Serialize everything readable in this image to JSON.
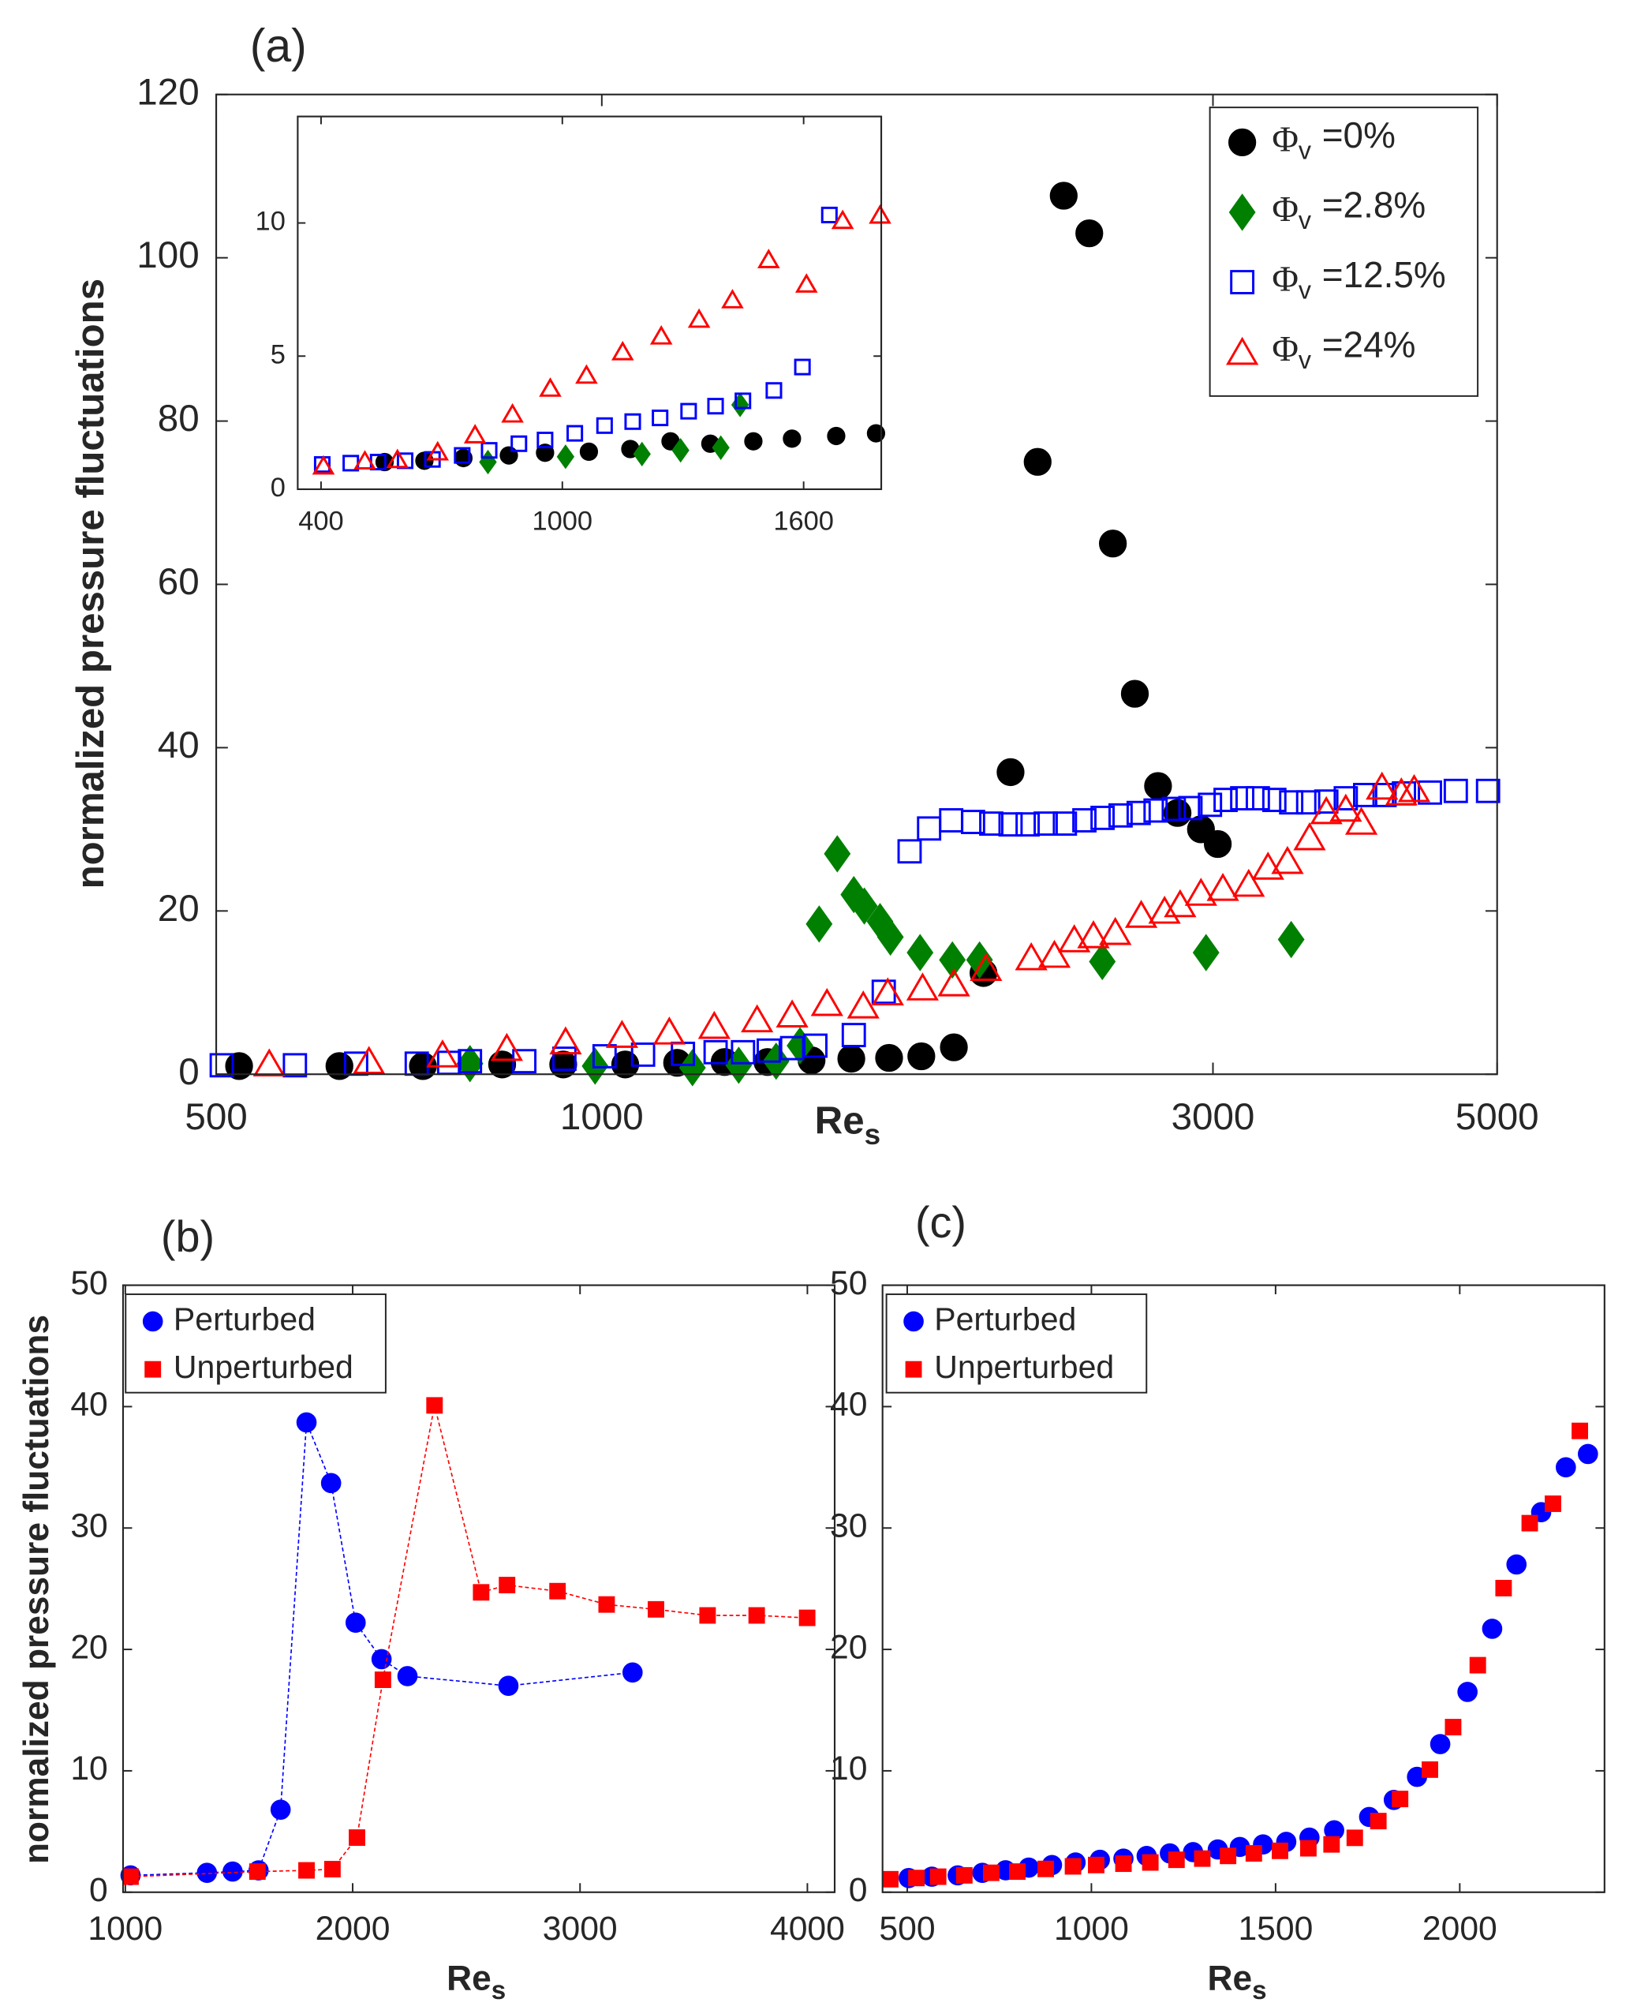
{
  "chart_data": [
    {
      "type": "scatter",
      "title": "(a)",
      "xlabel": "Re",
      "xlabel_sub": "s",
      "ylabel": "normalized pressure fluctuations",
      "xscale": "log",
      "xlim": [
        500,
        5000
      ],
      "xticks": [
        500,
        1000,
        3000,
        5000
      ],
      "ylim": [
        0,
        120
      ],
      "yticks": [
        0,
        20,
        40,
        60,
        80,
        100,
        120
      ],
      "grid": false,
      "legend": "upper right",
      "legend_prefix": "Φ",
      "legend_prefix_sub": "v",
      "series": [
        {
          "name": "=0%",
          "color": "#000000",
          "marker": "circle",
          "filled": true,
          "x": [
            521,
            624,
            725,
            836,
            933,
            1043,
            1145,
            1247,
            1347,
            1458,
            1566,
            1676,
            1776,
            1883,
            1986,
            2085,
            2189,
            2294,
            2402,
            2506,
            2607,
            2718,
            2815,
            2936,
            3026
          ],
          "values": [
            1,
            1,
            1,
            1.2,
            1.2,
            1.2,
            1.4,
            1.5,
            1.5,
            1.7,
            1.9,
            2,
            2.2,
            3.3,
            12.4,
            37,
            75,
            107.6,
            103,
            65,
            46.6,
            35.3,
            32,
            30,
            28.2
          ]
        },
        {
          "name": "=2.8%",
          "color": "#008000",
          "marker": "diamond",
          "filled": true,
          "x": [
            789,
            988,
            1177,
            1279,
            1368,
            1428,
            1478,
            1527,
            1573,
            1603,
            1649,
            1680,
            1772,
            1878,
            1972,
            2459,
            2963,
            3453
          ],
          "values": [
            1.3,
            1,
            0.8,
            1.1,
            1.6,
            3.5,
            18.4,
            27,
            22,
            20.6,
            18.7,
            16.8,
            14.9,
            14,
            14,
            13.8,
            14.9,
            16.5
          ]
        },
        {
          "name": "=12.5%",
          "color": "#0000ff",
          "marker": "square",
          "filled": false,
          "x": [
            505,
            576,
            643,
            717,
            760,
            789,
            870,
            935,
            1005,
            1077,
            1157,
            1227,
            1289,
            1350,
            1408,
            1468,
            1573,
            1660,
            1739,
            1801,
            1874,
            1949,
            2014,
            2085,
            2150,
            2221,
            2299,
            2381,
            2460,
            2541,
            2625,
            2706,
            2796,
            2881,
            2984,
            3069,
            3162,
            3252,
            3350,
            3453,
            3560,
            3678,
            3809,
            3944,
            4084,
            4229,
            4431,
            4642,
            4919
          ],
          "values": [
            1.1,
            1.1,
            1.3,
            1.3,
            1.4,
            1.6,
            1.6,
            1.9,
            2.2,
            2.4,
            2.5,
            2.7,
            2.7,
            2.9,
            3.2,
            3.5,
            4.8,
            10.1,
            27.3,
            30.1,
            31.1,
            30.9,
            30.7,
            30.6,
            30.6,
            30.7,
            30.7,
            31.1,
            31.4,
            31.7,
            32,
            32.3,
            32.5,
            32.6,
            33,
            33.6,
            33.8,
            33.8,
            33.6,
            33.3,
            33.3,
            33.4,
            33.8,
            34.2,
            34.2,
            34.4,
            34.5,
            34.7,
            34.7
          ]
        },
        {
          "name": "=24%",
          "color": "#ff0000",
          "marker": "triangle",
          "filled": false,
          "x": [
            550,
            658,
            751,
            843,
            937,
            1037,
            1129,
            1224,
            1322,
            1408,
            1499,
            1600,
            1672,
            1780,
            1883,
            1995,
            2164,
            2256,
            2338,
            2420,
            2517,
            2637,
            2750,
            2828,
            2936,
            3054,
            3199,
            3312,
            3430,
            3569,
            3678,
            3809,
            3917,
            4065,
            4209,
            4307
          ],
          "values": [
            1.3,
            1.6,
            2.4,
            3.2,
            4,
            4.8,
            5.2,
            5.9,
            6.7,
            7.3,
            8.7,
            8.4,
            10,
            10.6,
            11.1,
            13,
            14.3,
            14.6,
            16.5,
            17,
            17.4,
            19.5,
            20,
            20.8,
            22.2,
            22.8,
            23.3,
            25.4,
            26.1,
            29,
            32.2,
            32.5,
            30.9,
            35.2,
            34.5,
            34.9
          ]
        }
      ]
    },
    {
      "type": "scatter",
      "xlim": [
        342,
        1793
      ],
      "xticks": [
        400,
        1000,
        1600
      ],
      "ylim": [
        0,
        14
      ],
      "yticks": [
        0,
        5,
        10
      ],
      "grid": false,
      "series": [
        {
          "color": "#000000",
          "marker": "circle",
          "filled": true,
          "x": [
            558,
            657,
            754,
            867,
            957,
            1066,
            1169,
            1269,
            1368,
            1475,
            1571,
            1681,
            1780
          ],
          "values": [
            1.02,
            1.07,
            1.17,
            1.27,
            1.37,
            1.41,
            1.51,
            1.8,
            1.71,
            1.8,
            1.9,
            2,
            2.1
          ]
        },
        {
          "color": "#008000",
          "marker": "diamond",
          "filled": true,
          "x": [
            815,
            1008,
            1198,
            1294,
            1394,
            1442
          ],
          "values": [
            1.02,
            1.22,
            1.32,
            1.46,
            1.56,
            3.17
          ]
        },
        {
          "color": "#0000ff",
          "marker": "square",
          "filled": false,
          "x": [
            403,
            474,
            542,
            609,
            677,
            751,
            818,
            892,
            957,
            1031,
            1105,
            1175,
            1243,
            1314,
            1381,
            1449,
            1526,
            1597,
            1664
          ],
          "values": [
            0.93,
            0.98,
            1.02,
            1.07,
            1.12,
            1.27,
            1.46,
            1.71,
            1.85,
            2.1,
            2.39,
            2.54,
            2.68,
            2.93,
            3.12,
            3.32,
            3.71,
            4.59,
            10.3
          ]
        },
        {
          "color": "#ff0000",
          "marker": "triangle",
          "filled": false,
          "x": [
            406,
            509,
            590,
            690,
            783,
            876,
            970,
            1060,
            1150,
            1246,
            1340,
            1423,
            1513,
            1607,
            1697,
            1790
          ],
          "values": [
            0.88,
            1.07,
            1.12,
            1.41,
            2.05,
            2.83,
            3.8,
            4.29,
            5.17,
            5.76,
            6.39,
            7.12,
            8.63,
            7.71,
            10.1,
            10.3
          ]
        }
      ]
    },
    {
      "type": "line",
      "title": "(b)",
      "xlabel": "Re",
      "xlabel_sub": "s",
      "ylabel": "normalized pressure fluctuations",
      "xlim": [
        990,
        4120
      ],
      "xticks": [
        1000,
        2000,
        3000,
        4000
      ],
      "ylim": [
        0,
        50
      ],
      "yticks": [
        0,
        10,
        20,
        30,
        40,
        50
      ],
      "grid": false,
      "legend": "upper left",
      "linestyle": "dashed",
      "series": [
        {
          "name": "Perturbed",
          "color": "#0000ff",
          "marker": "circle",
          "filled": true,
          "x": [
            1023,
            1359,
            1472,
            1586,
            1683,
            1797,
            1905,
            2013,
            2127,
            2241,
            2685,
            3231
          ],
          "values": [
            1.39,
            1.6,
            1.7,
            1.8,
            6.8,
            38.7,
            33.7,
            22.2,
            19.2,
            17.8,
            17,
            18.1
          ]
        },
        {
          "name": "Unperturbed",
          "color": "#ff0000",
          "marker": "square",
          "filled": true,
          "x": [
            1023,
            1581,
            1797,
            1911,
            2019,
            2133,
            2360,
            2565,
            2679,
            2901,
            3117,
            3334,
            3561,
            3777,
            3999
          ],
          "values": [
            1.28,
            1.7,
            1.8,
            1.9,
            4.5,
            17.5,
            40.1,
            24.7,
            25.3,
            24.8,
            23.7,
            23.3,
            22.8,
            22.8,
            22.6
          ]
        }
      ]
    },
    {
      "type": "scatter",
      "title": "(c)",
      "xlabel": "Re",
      "xlabel_sub": "s",
      "xlim": [
        433,
        2393
      ],
      "xticks": [
        500,
        1000,
        1500,
        2000
      ],
      "ylim": [
        0,
        50
      ],
      "yticks": [
        0,
        10,
        20,
        30,
        40,
        50
      ],
      "grid": false,
      "legend": "upper left",
      "series": [
        {
          "name": "Perturbed",
          "color": "#0000ff",
          "marker": "circle",
          "filled": true,
          "x": [
            504,
            567,
            637,
            704,
            767,
            830,
            893,
            957,
            1023,
            1087,
            1150,
            1213,
            1276,
            1343,
            1403,
            1466,
            1529,
            1592,
            1659,
            1754,
            1821,
            1884,
            1947,
            2021,
            2088,
            2154,
            2221,
            2288,
            2348
          ],
          "values": [
            1.17,
            1.28,
            1.39,
            1.6,
            1.81,
            2.03,
            2.24,
            2.45,
            2.67,
            2.77,
            2.99,
            3.2,
            3.3,
            3.52,
            3.73,
            3.94,
            4.15,
            4.5,
            5.1,
            6.2,
            7.6,
            9.5,
            12.2,
            16.5,
            21.7,
            27,
            31.3,
            35,
            36.1
          ]
        },
        {
          "name": "Unperturbed",
          "color": "#ff0000",
          "marker": "square",
          "filled": true,
          "x": [
            454,
            525,
            584,
            655,
            728,
            799,
            876,
            950,
            1013,
            1087,
            1160,
            1231,
            1301,
            1371,
            1441,
            1512,
            1589,
            1652,
            1715,
            1779,
            1838,
            1919,
            1982,
            2049,
            2119,
            2190,
            2253,
            2326
          ],
          "values": [
            1.07,
            1.17,
            1.28,
            1.39,
            1.6,
            1.7,
            1.92,
            2.13,
            2.24,
            2.35,
            2.45,
            2.67,
            2.77,
            2.99,
            3.2,
            3.41,
            3.62,
            3.94,
            4.48,
            5.86,
            7.68,
            10.1,
            13.6,
            18.7,
            25.05,
            30.4,
            32,
            38
          ]
        }
      ]
    }
  ]
}
